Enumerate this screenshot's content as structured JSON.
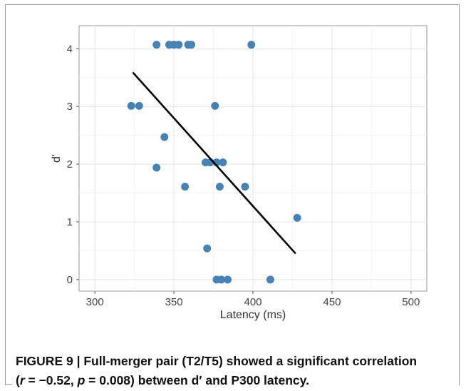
{
  "figure": {
    "caption": {
      "label": "FIGURE 9",
      "separator": " | ",
      "line1": "Full-merger pair (T2/T5) showed a significant correlation",
      "line2_open": "(",
      "r_symbol": "r",
      "r_value": " = −0.52, ",
      "p_symbol": "p",
      "p_value": " = 0.008) between d′ and P300 latency."
    }
  },
  "chart_data": {
    "type": "scatter",
    "title": "",
    "xlabel": "Latency (ms)",
    "ylabel": "d'",
    "xlim": [
      290,
      510
    ],
    "ylim": [
      -0.2,
      4.4
    ],
    "xticks": [
      300,
      350,
      400,
      450,
      500
    ],
    "yticks": [
      0,
      1,
      2,
      3,
      4
    ],
    "grid": true,
    "legend": "none",
    "point_color": "#4682b4",
    "line_color": "#000000",
    "points": [
      {
        "x": 339,
        "y": 4.07
      },
      {
        "x": 347,
        "y": 4.07
      },
      {
        "x": 350,
        "y": 4.07
      },
      {
        "x": 353,
        "y": 4.07
      },
      {
        "x": 359,
        "y": 4.07
      },
      {
        "x": 361,
        "y": 4.07
      },
      {
        "x": 399,
        "y": 4.07
      },
      {
        "x": 323,
        "y": 3.01
      },
      {
        "x": 328,
        "y": 3.01
      },
      {
        "x": 376,
        "y": 3.01
      },
      {
        "x": 344,
        "y": 2.47
      },
      {
        "x": 339,
        "y": 1.94
      },
      {
        "x": 370,
        "y": 2.03
      },
      {
        "x": 373,
        "y": 2.03
      },
      {
        "x": 377,
        "y": 2.03
      },
      {
        "x": 381,
        "y": 2.03
      },
      {
        "x": 357,
        "y": 1.61
      },
      {
        "x": 379,
        "y": 1.61
      },
      {
        "x": 395,
        "y": 1.61
      },
      {
        "x": 428,
        "y": 1.07
      },
      {
        "x": 371,
        "y": 0.54
      },
      {
        "x": 377,
        "y": 0.0
      },
      {
        "x": 380,
        "y": 0.0
      },
      {
        "x": 384,
        "y": 0.0
      },
      {
        "x": 411,
        "y": 0.0
      }
    ],
    "regression_line": {
      "x": [
        324,
        427
      ],
      "y": [
        3.59,
        0.45
      ]
    }
  }
}
